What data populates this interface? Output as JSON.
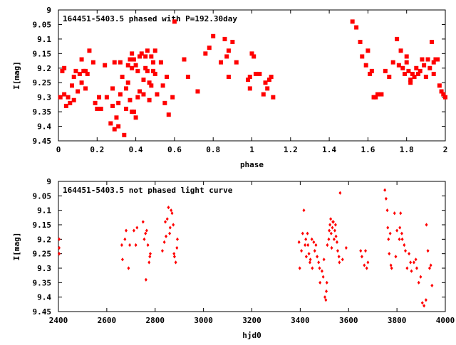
{
  "colors": {
    "points": "#ff0000",
    "axes": "#000000",
    "background": "#ffffff"
  },
  "chart_data": [
    {
      "type": "scatter",
      "title": "164451-5403.5 phased with P=192.30day",
      "xlabel": "phase",
      "ylabel": "I[mag]",
      "xlim": [
        0,
        2
      ],
      "ylim": [
        9.45,
        9
      ],
      "y_reversed": true,
      "grid": false,
      "xticks": [
        "0",
        "0.2",
        "0.4",
        "0.6",
        "0.8",
        "1",
        "1.2",
        "1.4",
        "1.6",
        "1.8",
        "2"
      ],
      "yticks": [
        "9",
        "9.05",
        "9.1",
        "9.15",
        "9.2",
        "9.25",
        "9.3",
        "9.35",
        "9.4",
        "9.45"
      ],
      "marker": "filled-square",
      "x": [
        0.01,
        0.02,
        0.03,
        0.03,
        0.04,
        0.05,
        0.06,
        0.07,
        0.08,
        0.08,
        0.09,
        0.1,
        0.11,
        0.12,
        0.12,
        0.13,
        0.14,
        0.14,
        0.15,
        0.16,
        0.18,
        0.19,
        0.2,
        0.21,
        0.22,
        0.24,
        0.25,
        0.27,
        0.28,
        0.28,
        0.29,
        0.29,
        0.3,
        0.31,
        0.31,
        0.32,
        0.32,
        0.33,
        0.34,
        0.35,
        0.35,
        0.36,
        0.36,
        0.37,
        0.37,
        0.38,
        0.38,
        0.38,
        0.39,
        0.39,
        0.4,
        0.4,
        0.41,
        0.41,
        0.42,
        0.42,
        0.43,
        0.44,
        0.44,
        0.45,
        0.45,
        0.46,
        0.46,
        0.47,
        0.47,
        0.48,
        0.48,
        0.49,
        0.49,
        0.5,
        0.5,
        0.51,
        0.53,
        0.54,
        0.55,
        0.56,
        0.57,
        0.59,
        0.6,
        0.65,
        0.67,
        0.72,
        0.76,
        0.78,
        0.8,
        0.84,
        0.86,
        0.87,
        0.88,
        0.88,
        0.9,
        0.92,
        0.98,
        0.99,
        0.99,
        1.0,
        1.01,
        1.02,
        1.04,
        1.06,
        1.07,
        1.08,
        1.09,
        1.1,
        1.11,
        1.52,
        1.54,
        1.56,
        1.57,
        1.59,
        1.6,
        1.61,
        1.62,
        1.63,
        1.64,
        1.65,
        1.67,
        1.69,
        1.71,
        1.73,
        1.75,
        1.76,
        1.77,
        1.78,
        1.79,
        1.8,
        1.8,
        1.81,
        1.82,
        1.82,
        1.83,
        1.84,
        1.85,
        1.86,
        1.87,
        1.88,
        1.89,
        1.9,
        1.91,
        1.92,
        1.93,
        1.94,
        1.94,
        1.95,
        1.96,
        1.97,
        1.98,
        1.99,
        2.0
      ],
      "y": [
        9.3,
        9.21,
        9.29,
        9.2,
        9.33,
        9.3,
        9.32,
        9.26,
        9.23,
        9.31,
        9.21,
        9.28,
        9.22,
        9.25,
        9.17,
        9.21,
        9.27,
        9.21,
        9.22,
        9.14,
        9.18,
        9.32,
        9.34,
        9.3,
        9.34,
        9.19,
        9.3,
        9.39,
        9.27,
        9.33,
        9.18,
        9.41,
        9.37,
        9.4,
        9.32,
        9.29,
        9.18,
        9.23,
        9.43,
        9.34,
        9.27,
        9.25,
        9.19,
        9.17,
        9.31,
        9.35,
        9.15,
        9.2,
        9.17,
        9.35,
        9.19,
        9.37,
        9.3,
        9.21,
        9.16,
        9.28,
        9.15,
        9.29,
        9.24,
        9.16,
        9.2,
        9.21,
        9.14,
        9.25,
        9.31,
        9.26,
        9.16,
        9.21,
        9.18,
        9.14,
        9.22,
        9.29,
        9.18,
        9.26,
        9.32,
        9.23,
        9.36,
        9.3,
        9.04,
        9.17,
        9.23,
        9.28,
        9.15,
        9.13,
        9.09,
        9.18,
        9.1,
        9.16,
        9.14,
        9.23,
        9.11,
        9.18,
        9.24,
        9.23,
        9.27,
        9.15,
        9.16,
        9.22,
        9.22,
        9.29,
        9.25,
        9.27,
        9.24,
        9.23,
        9.3,
        9.04,
        9.06,
        9.11,
        9.16,
        9.19,
        9.14,
        9.22,
        9.21,
        9.3,
        9.3,
        9.29,
        9.29,
        9.21,
        9.23,
        9.18,
        9.1,
        9.19,
        9.14,
        9.2,
        9.22,
        9.18,
        9.16,
        9.21,
        9.25,
        9.24,
        9.22,
        9.23,
        9.2,
        9.22,
        9.21,
        9.17,
        9.19,
        9.23,
        9.17,
        9.2,
        9.11,
        9.18,
        9.22,
        9.17,
        9.17,
        9.26,
        9.28,
        9.29,
        9.3
      ]
    },
    {
      "type": "scatter",
      "title": "164451-5403.5 not phased light curve",
      "xlabel": "hjd0",
      "ylabel": "I[mag]",
      "xlim": [
        2400,
        4000
      ],
      "ylim": [
        9.45,
        9
      ],
      "y_reversed": true,
      "grid": false,
      "xticks": [
        "2400",
        "2600",
        "2800",
        "3000",
        "3200",
        "3400",
        "3600",
        "3800",
        "4000"
      ],
      "yticks": [
        "9",
        "9.05",
        "9.1",
        "9.15",
        "9.2",
        "9.25",
        "9.3",
        "9.35",
        "9.4",
        "9.45"
      ],
      "marker": "small-diamond",
      "x": [
        2403,
        2403,
        2403,
        2403,
        2662,
        2665,
        2675,
        2680,
        2690,
        2695,
        2712,
        2720,
        2725,
        2750,
        2755,
        2760,
        2762,
        2765,
        2770,
        2775,
        2778,
        2780,
        2830,
        2838,
        2842,
        2845,
        2850,
        2855,
        2860,
        2862,
        2866,
        2870,
        2875,
        2878,
        2880,
        2885,
        2890,
        2892,
        3395,
        3398,
        3405,
        3410,
        3415,
        3420,
        3423,
        3425,
        3430,
        3432,
        3436,
        3440,
        3442,
        3448,
        3450,
        3456,
        3460,
        3465,
        3470,
        3476,
        3480,
        3482,
        3490,
        3495,
        3498,
        3502,
        3506,
        3508,
        3510,
        3512,
        3518,
        3520,
        3523,
        3526,
        3528,
        3530,
        3533,
        3535,
        3537,
        3540,
        3543,
        3546,
        3548,
        3552,
        3555,
        3560,
        3562,
        3565,
        3575,
        3590,
        3650,
        3655,
        3665,
        3670,
        3675,
        3680,
        3750,
        3755,
        3760,
        3762,
        3765,
        3768,
        3772,
        3775,
        3778,
        3790,
        3795,
        3800,
        3810,
        3812,
        3815,
        3820,
        3822,
        3830,
        3835,
        3842,
        3850,
        3856,
        3860,
        3870,
        3878,
        3882,
        3890,
        3898,
        3905,
        3912,
        3920,
        3922,
        3928,
        3935,
        3940,
        3945
      ],
      "y": [
        9.2,
        9.23,
        9.25,
        9.25,
        9.22,
        9.27,
        9.2,
        9.17,
        9.3,
        9.22,
        9.17,
        9.22,
        9.16,
        9.14,
        9.2,
        9.18,
        9.34,
        9.17,
        9.22,
        9.28,
        9.26,
        9.25,
        9.24,
        9.21,
        9.14,
        9.19,
        9.13,
        9.09,
        9.18,
        9.16,
        9.1,
        9.11,
        9.15,
        9.25,
        9.26,
        9.28,
        9.23,
        9.2,
        9.21,
        9.3,
        9.24,
        9.18,
        9.1,
        9.22,
        9.2,
        9.26,
        9.18,
        9.22,
        9.25,
        9.28,
        9.27,
        9.2,
        9.3,
        9.21,
        9.24,
        9.22,
        9.26,
        9.28,
        9.3,
        9.35,
        9.31,
        9.33,
        9.27,
        9.4,
        9.41,
        9.38,
        9.35,
        9.22,
        9.2,
        9.17,
        9.15,
        9.13,
        9.18,
        9.23,
        9.16,
        9.14,
        9.14,
        9.2,
        9.17,
        9.15,
        9.19,
        9.21,
        9.24,
        9.26,
        9.28,
        9.04,
        9.27,
        9.23,
        9.24,
        9.26,
        9.29,
        9.24,
        9.3,
        9.28,
        9.03,
        9.06,
        9.1,
        9.16,
        9.2,
        9.25,
        9.18,
        9.29,
        9.3,
        9.11,
        9.26,
        9.17,
        9.2,
        9.16,
        9.11,
        9.18,
        9.2,
        9.22,
        9.24,
        9.3,
        9.25,
        9.28,
        9.31,
        9.28,
        9.27,
        9.3,
        9.35,
        9.33,
        9.42,
        9.43,
        9.41,
        9.15,
        9.24,
        9.3,
        9.29,
        9.36
      ]
    }
  ]
}
